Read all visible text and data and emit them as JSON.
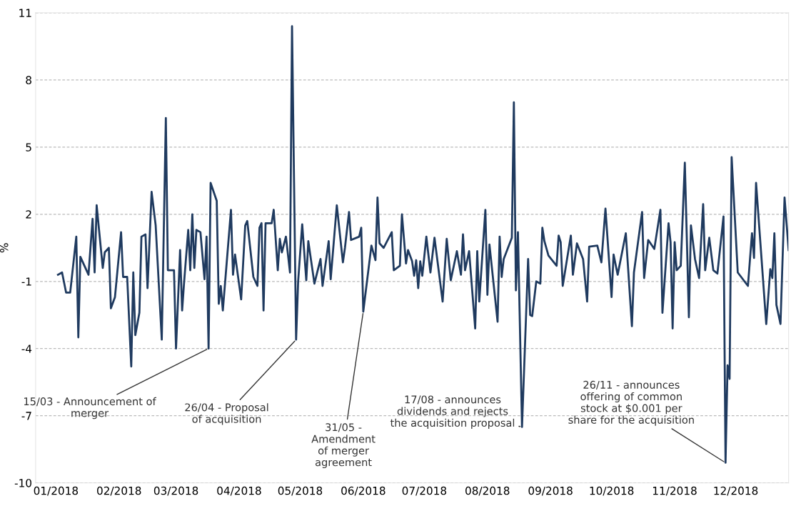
{
  "chart_data": {
    "type": "line",
    "ylabel": "%",
    "x": [
      "2018-01-02",
      "2018-01-04",
      "2018-01-06",
      "2018-01-08",
      "2018-01-11",
      "2018-01-12",
      "2018-01-13",
      "2018-01-17",
      "2018-01-19",
      "2018-01-20",
      "2018-01-21",
      "2018-01-24",
      "2018-01-25",
      "2018-01-27",
      "2018-01-28",
      "2018-01-30",
      "2018-02-02",
      "2018-02-03",
      "2018-02-05",
      "2018-02-07",
      "2018-02-08",
      "2018-02-09",
      "2018-02-11",
      "2018-02-12",
      "2018-02-14",
      "2018-02-15",
      "2018-02-17",
      "2018-02-19",
      "2018-02-22",
      "2018-02-24",
      "2018-02-25",
      "2018-02-28",
      "2018-03-01",
      "2018-03-03",
      "2018-03-04",
      "2018-03-05",
      "2018-03-07",
      "2018-03-08",
      "2018-03-09",
      "2018-03-10",
      "2018-03-11",
      "2018-03-13",
      "2018-03-15",
      "2018-03-16",
      "2018-03-17",
      "2018-03-18",
      "2018-03-21",
      "2018-03-22",
      "2018-03-23",
      "2018-03-24",
      "2018-03-28",
      "2018-03-29",
      "2018-03-30",
      "2018-04-02",
      "2018-04-04",
      "2018-04-05",
      "2018-04-08",
      "2018-04-10",
      "2018-04-11",
      "2018-04-12",
      "2018-04-13",
      "2018-04-14",
      "2018-04-17",
      "2018-04-18",
      "2018-04-20",
      "2018-04-21",
      "2018-04-22",
      "2018-04-24",
      "2018-04-26",
      "2018-04-27",
      "2018-04-29",
      "2018-04-30",
      "2018-05-02",
      "2018-05-04",
      "2018-05-05",
      "2018-05-08",
      "2018-05-11",
      "2018-05-12",
      "2018-05-15",
      "2018-05-16",
      "2018-05-19",
      "2018-05-22",
      "2018-05-23",
      "2018-05-25",
      "2018-05-26",
      "2018-05-30",
      "2018-05-31",
      "2018-06-01",
      "2018-06-05",
      "2018-06-07",
      "2018-06-08",
      "2018-06-09",
      "2018-06-11",
      "2018-06-15",
      "2018-06-16",
      "2018-06-19",
      "2018-06-20",
      "2018-06-22",
      "2018-06-23",
      "2018-06-25",
      "2018-06-26",
      "2018-06-27",
      "2018-06-28",
      "2018-06-29",
      "2018-06-30",
      "2018-07-02",
      "2018-07-04",
      "2018-07-06",
      "2018-07-10",
      "2018-07-12",
      "2018-07-14",
      "2018-07-17",
      "2018-07-19",
      "2018-07-20",
      "2018-07-21",
      "2018-07-23",
      "2018-07-26",
      "2018-07-27",
      "2018-07-28",
      "2018-07-31",
      "2018-08-01",
      "2018-08-02",
      "2018-08-06",
      "2018-08-07",
      "2018-08-08",
      "2018-08-09",
      "2018-08-13",
      "2018-08-14",
      "2018-08-15",
      "2018-08-16",
      "2018-08-18",
      "2018-08-21",
      "2018-08-22",
      "2018-08-23",
      "2018-08-25",
      "2018-08-27",
      "2018-08-28",
      "2018-08-29",
      "2018-08-31",
      "2018-09-04",
      "2018-09-05",
      "2018-09-06",
      "2018-09-07",
      "2018-09-11",
      "2018-09-12",
      "2018-09-14",
      "2018-09-17",
      "2018-09-19",
      "2018-09-20",
      "2018-09-24",
      "2018-09-26",
      "2018-09-28",
      "2018-10-01",
      "2018-10-02",
      "2018-10-04",
      "2018-10-08",
      "2018-10-11",
      "2018-10-12",
      "2018-10-16",
      "2018-10-17",
      "2018-10-19",
      "2018-10-22",
      "2018-10-25",
      "2018-10-26",
      "2018-10-29",
      "2018-10-30",
      "2018-10-31",
      "2018-11-01",
      "2018-11-02",
      "2018-11-04",
      "2018-11-06",
      "2018-11-08",
      "2018-11-09",
      "2018-11-11",
      "2018-11-13",
      "2018-11-15",
      "2018-11-16",
      "2018-11-18",
      "2018-11-20",
      "2018-11-22",
      "2018-11-25",
      "2018-11-26",
      "2018-11-27",
      "2018-11-28",
      "2018-11-29",
      "2018-12-02",
      "2018-12-07",
      "2018-12-09",
      "2018-12-10",
      "2018-12-11",
      "2018-12-16",
      "2018-12-18",
      "2018-12-19",
      "2018-12-20",
      "2018-12-21",
      "2018-12-23",
      "2018-12-25",
      "2018-12-27"
    ],
    "series": [
      {
        "color": "#1f3a5f",
        "values": [
          -0.7,
          -0.6,
          -1.5,
          -1.5,
          1.0,
          -3.5,
          0.1,
          -0.7,
          1.8,
          -0.6,
          2.4,
          -0.4,
          0.3,
          0.5,
          -2.2,
          -1.7,
          1.2,
          -0.8,
          -0.8,
          -4.8,
          -0.6,
          -3.4,
          -2.4,
          1.0,
          1.1,
          -1.3,
          3.0,
          1.5,
          -3.6,
          6.3,
          -0.5,
          -0.5,
          -4.0,
          0.4,
          -2.3,
          -1.0,
          1.3,
          -0.5,
          2.0,
          -0.4,
          1.3,
          1.2,
          -0.9,
          1.0,
          -4.0,
          3.4,
          2.6,
          -2.0,
          -1.2,
          -2.3,
          2.2,
          -0.7,
          0.2,
          -1.8,
          1.5,
          1.7,
          -0.8,
          -1.2,
          1.4,
          1.6,
          -2.3,
          1.6,
          1.6,
          2.2,
          -0.5,
          0.9,
          0.3,
          1.0,
          -0.6,
          10.4,
          -3.6,
          -1.0,
          1.55,
          -0.95,
          0.8,
          -1.1,
          0.0,
          -1.2,
          0.8,
          -0.9,
          2.4,
          -0.15,
          0.5,
          2.1,
          0.85,
          1.0,
          1.4,
          -2.35,
          0.6,
          -0.05,
          2.75,
          0.7,
          0.5,
          1.2,
          -0.5,
          -0.3,
          2.0,
          -0.2,
          0.4,
          -0.1,
          -0.75,
          -0.05,
          -1.3,
          -0.1,
          -0.75,
          1.0,
          -0.6,
          0.95,
          -1.9,
          0.9,
          -0.95,
          0.35,
          -0.7,
          1.1,
          -0.5,
          0.35,
          -3.1,
          0.35,
          -1.9,
          2.2,
          -1.6,
          0.65,
          -2.8,
          1.0,
          -0.8,
          0.0,
          0.95,
          7.0,
          -1.4,
          1.2,
          -7.5,
          0.0,
          -2.5,
          -2.55,
          -1.0,
          -1.1,
          1.4,
          0.8,
          0.15,
          -0.3,
          1.05,
          0.75,
          -1.2,
          1.05,
          -0.7,
          0.7,
          0.0,
          -1.9,
          0.55,
          0.6,
          -0.15,
          2.25,
          -1.7,
          0.2,
          -0.7,
          1.15,
          -3.0,
          -0.6,
          2.1,
          -0.85,
          0.85,
          0.45,
          2.2,
          -2.4,
          1.6,
          0.75,
          -3.1,
          0.75,
          -0.5,
          -0.3,
          4.3,
          -2.6,
          1.5,
          0.0,
          -0.85,
          2.45,
          -0.5,
          0.95,
          -0.5,
          -0.65,
          1.9,
          -9.1,
          -4.75,
          -5.35,
          4.55,
          -0.6,
          -1.2,
          1.15,
          0.05,
          3.4,
          -2.9,
          -0.45,
          -0.85,
          1.15,
          -2.05,
          -2.9,
          2.75,
          0.4
        ]
      }
    ],
    "xlim": [
      "2017-12-22",
      "2018-12-27"
    ],
    "xticks": [
      {
        "value": "2018-01-01",
        "label": "01/2018"
      },
      {
        "value": "2018-02-01",
        "label": "02/2018"
      },
      {
        "value": "2018-03-01",
        "label": "03/2018"
      },
      {
        "value": "2018-04-01",
        "label": "04/2018"
      },
      {
        "value": "2018-05-01",
        "label": "05/2018"
      },
      {
        "value": "2018-06-01",
        "label": "06/2018"
      },
      {
        "value": "2018-07-01",
        "label": "07/2018"
      },
      {
        "value": "2018-08-01",
        "label": "08/2018"
      },
      {
        "value": "2018-09-01",
        "label": "09/2018"
      },
      {
        "value": "2018-10-01",
        "label": "10/2018"
      },
      {
        "value": "2018-11-01",
        "label": "11/2018"
      },
      {
        "value": "2018-12-01",
        "label": "12/2018"
      }
    ],
    "ylim": [
      -10,
      11
    ],
    "yticks": [
      -10,
      -7,
      -4,
      -1,
      2,
      5,
      8,
      11
    ],
    "grid": "y",
    "marker": "none",
    "line_style": "solid",
    "annotations": [
      {
        "text": "15/03 - Announcement of\nmerger",
        "x": "2018-03-17",
        "y": -4.0
      },
      {
        "text": "26/04 - Proposal\nof acquisition",
        "x": "2018-04-29",
        "y": -3.6
      },
      {
        "text": "31/05 -\nAmendment\nof merger\nagreement",
        "x": "2018-06-01",
        "y": -2.35
      },
      {
        "text": "17/08 - announces\ndividends and rejects\nthe acquisition proposal",
        "x": "2018-08-18",
        "y": -7.5
      },
      {
        "text": "26/11 - announces\noffering of common\nstock at $0.001 per\nshare for the acquisition",
        "x": "2018-11-26",
        "y": -9.1
      }
    ]
  }
}
